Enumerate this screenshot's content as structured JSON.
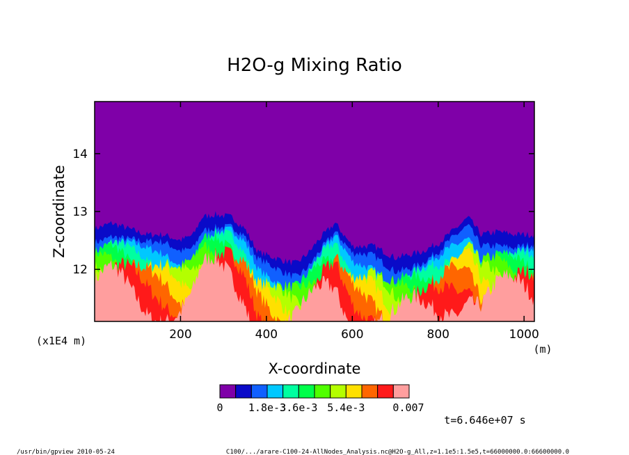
{
  "chart_data": {
    "type": "heatmap",
    "title": "H2O-g Mixing Ratio",
    "xlabel": "X-coordinate",
    "ylabel": "Z-coordinate",
    "x_unit": "(m)",
    "y_unit": "(x1E4 m)",
    "xlim": [
      0,
      1024
    ],
    "ylim": [
      11.1,
      14.9
    ],
    "x_ticks": [
      200,
      400,
      600,
      800,
      1000
    ],
    "y_ticks": [
      12,
      13,
      14
    ],
    "x_tick_labels": [
      "200",
      "400",
      "600",
      "800",
      "1000"
    ],
    "y_tick_labels": [
      "12",
      "13",
      "14"
    ],
    "colorbar": {
      "min": 0,
      "max": 0.007,
      "colors": [
        "#7f00a8",
        "#0a0ac8",
        "#1060ff",
        "#00c8ff",
        "#00ffa0",
        "#00ff4a",
        "#50ff00",
        "#b4ff00",
        "#ffe000",
        "#ff6600",
        "#ff1a1a",
        "#ff9e9e"
      ],
      "labels": [
        "0",
        "1.8e-3",
        "3.6e-3",
        "5.4e-3",
        "0.007"
      ]
    },
    "contour_top_boundary": {
      "x": [
        0,
        40,
        80,
        120,
        160,
        200,
        230,
        250,
        280,
        320,
        350,
        380,
        420,
        440,
        470,
        500,
        520,
        560,
        600,
        650,
        700,
        760,
        800,
        840,
        870,
        900,
        940,
        980,
        1024
      ],
      "z": [
        12.7,
        12.8,
        12.7,
        12.6,
        12.6,
        12.5,
        12.6,
        12.9,
        12.95,
        12.9,
        12.7,
        12.3,
        12.2,
        12.15,
        12.1,
        12.3,
        12.5,
        12.8,
        12.4,
        12.4,
        12.2,
        12.3,
        12.45,
        12.7,
        12.9,
        12.6,
        12.65,
        12.6,
        12.6
      ]
    },
    "time_label": "t=6.646e+07 s"
  },
  "footer": {
    "left": "/usr/bin/gpview  2010-05-24",
    "right": "C100/.../arare-C100-24-AllNodes_Analysis.nc@H2O-g_All,z=1.1e5:1.5e5,t=66000000.0:66600000.0"
  }
}
